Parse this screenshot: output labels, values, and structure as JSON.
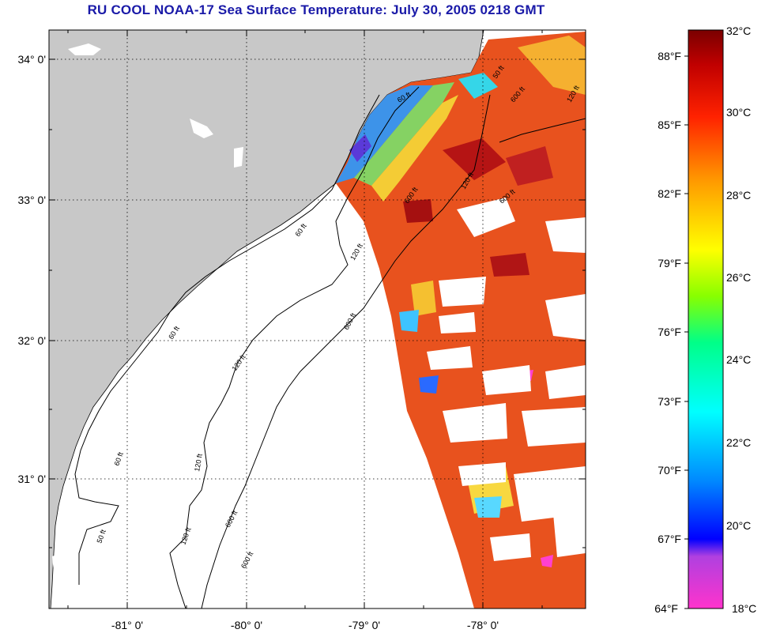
{
  "title": "RU COOL  NOAA-17  Sea Surface Temperature:  July 30, 2005 0218 GMT",
  "latitude_labels": [
    "34° 0'",
    "33° 0'",
    "32° 0'",
    "31° 0'"
  ],
  "longitude_labels": [
    "-81° 0'",
    "-80° 0'",
    "-79° 0'",
    "-78° 0'"
  ],
  "contour_labels": [
    "60 ft",
    "120 ft",
    "600 ft",
    "60 ft",
    "120 ft",
    "600 ft",
    "60 ft",
    "120 ft",
    "600 ft",
    "60 ft",
    "120 ft",
    "600 ft",
    "50 ft",
    "120 ft",
    "600 ft",
    "50 ft",
    "120 ft",
    "600 ft"
  ],
  "colorbar": {
    "fahrenheit_labels": [
      "88°F",
      "85°F",
      "82°F",
      "79°F",
      "76°F",
      "73°F",
      "70°F",
      "67°F",
      "64°F"
    ],
    "celsius_labels": [
      "32°C",
      "30°C",
      "28°C",
      "26°C",
      "24°C",
      "22°C",
      "20°C",
      "18°C"
    ],
    "range_c": [
      18,
      32
    ]
  },
  "colors": {
    "title": "#1a1aa8",
    "land": "#c8c8c8",
    "ocean_nodata": "#ffffff",
    "sst_warm": "#e8401a",
    "sst_hot": "#a01010"
  }
}
